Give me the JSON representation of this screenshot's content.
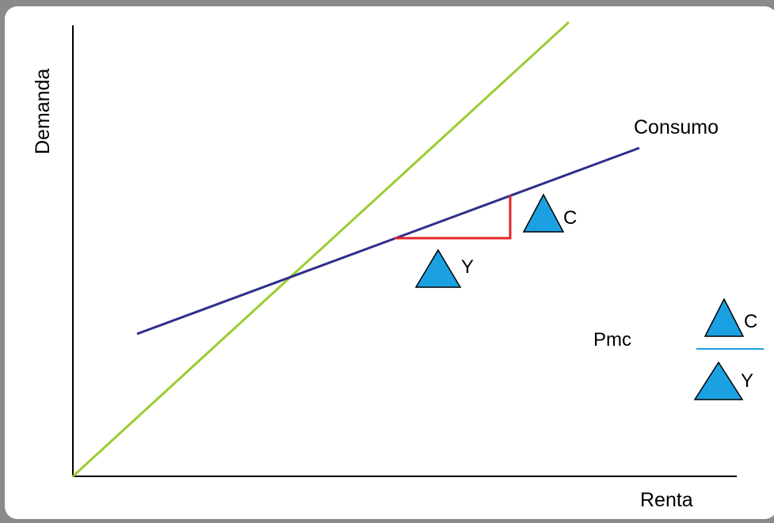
{
  "labels": {
    "y_axis": "Demanda",
    "x_axis": "Renta",
    "consumo": "Consumo",
    "pmc": "Pmc"
  },
  "deltas": {
    "c_symbol": "C",
    "y_symbol": "Y"
  },
  "colors": {
    "background_border": "#8a8a8a",
    "line_45": "#9ACD32",
    "consumption_line": "#2E2E8C",
    "slope_triangle": "#E3262A",
    "delta_fill": "#1BA1E2",
    "fraction_bar": "#1BA1E2",
    "axes": "#000000"
  }
}
